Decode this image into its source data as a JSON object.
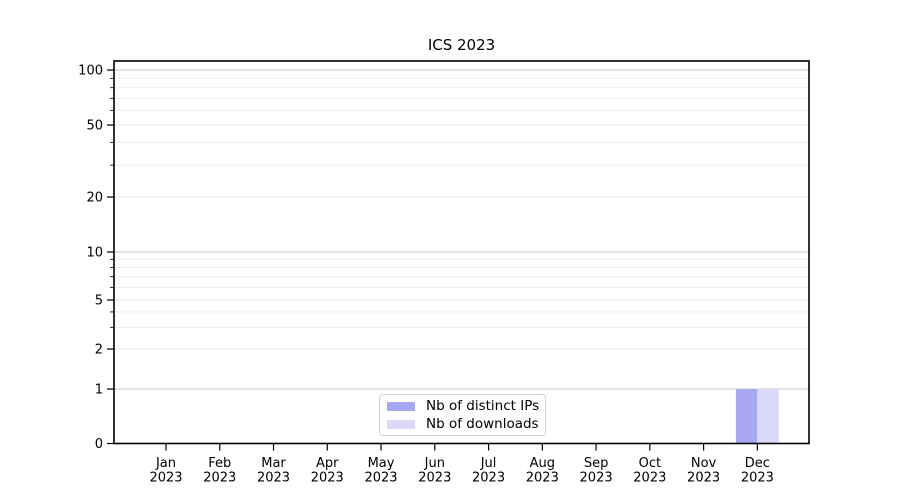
{
  "title": "ICS 2023",
  "legend": {
    "items": [
      {
        "label": "Nb of distinct IPs",
        "color": "#a8a8f2"
      },
      {
        "label": "Nb of downloads",
        "color": "#dadaf8"
      }
    ]
  },
  "chart_data": {
    "type": "bar",
    "title": "ICS 2023",
    "categories": [
      "Jan",
      "Feb",
      "Mar",
      "Apr",
      "May",
      "Jun",
      "Jul",
      "Aug",
      "Sep",
      "Oct",
      "Nov",
      "Dec"
    ],
    "category_year": "2023",
    "series": [
      {
        "name": "Nb of distinct IPs",
        "color": "#a8a8f2",
        "values": [
          0,
          0,
          0,
          0,
          0,
          0,
          0,
          0,
          0,
          0,
          0,
          1
        ]
      },
      {
        "name": "Nb of downloads",
        "color": "#dadaf8",
        "values": [
          0,
          0,
          0,
          0,
          0,
          0,
          0,
          0,
          0,
          0,
          0,
          1
        ]
      }
    ],
    "y_ticks": [
      0,
      1,
      2,
      5,
      10,
      20,
      50,
      100
    ],
    "y_minor_ticks": [
      3,
      4,
      6,
      7,
      8,
      9,
      30,
      40,
      60,
      70,
      80,
      90
    ],
    "y_scale": "symlog",
    "ylim": [
      0,
      112
    ],
    "grid": "both",
    "legend_position": "lower center",
    "colors": {
      "spine": "#000000",
      "grid_decade": "#c7c7c7",
      "grid_major": "#e5e5e5",
      "grid_minor": "#ededed",
      "text": "#000000"
    }
  }
}
